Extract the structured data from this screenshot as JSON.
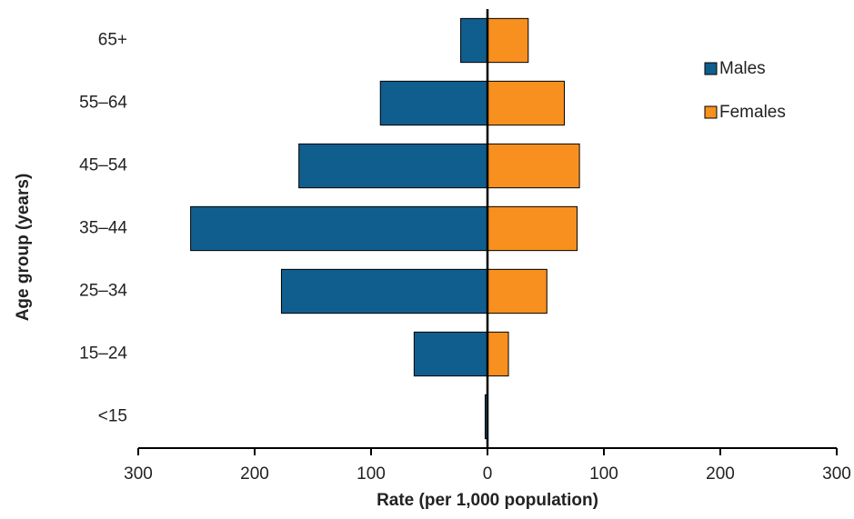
{
  "chart_data": {
    "type": "bar",
    "orientation": "horizontal",
    "x_label": "Rate (per 1,000  population)",
    "y_label": "Age group (years)",
    "categories": [
      "<15",
      "15–24",
      "25–34",
      "35–44",
      "45–54",
      "55–64",
      "65+"
    ],
    "series": [
      {
        "name": "Males",
        "color": "#105e8e",
        "values": [
          -2,
          -63,
          -177,
          -255,
          -162,
          -92,
          -23
        ]
      },
      {
        "name": "Females",
        "color": "#f7901e",
        "values": [
          0,
          18,
          51,
          77,
          79,
          66,
          35
        ]
      }
    ],
    "xlim": [
      -300,
      300
    ],
    "xticks": [
      {
        "value": -300,
        "label": "300"
      },
      {
        "value": -200,
        "label": "200"
      },
      {
        "value": -100,
        "label": "100"
      },
      0,
      100,
      200,
      300
    ],
    "legend": "upper right"
  }
}
